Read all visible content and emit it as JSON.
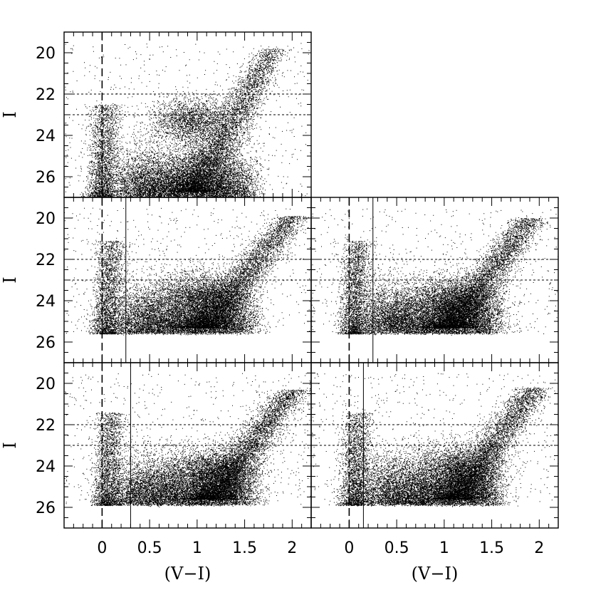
{
  "chart_data": [
    {
      "panel": "top-left",
      "type": "scatter",
      "xlabel": "",
      "ylabel": "I",
      "xlim": [
        -0.4,
        2.2
      ],
      "ylim": [
        27.0,
        19.0
      ],
      "y_tick_labels": [
        "20",
        "22",
        "24",
        "26"
      ],
      "x_tick_labels": [],
      "reference_lines": {
        "dashed_x": 0.0,
        "dotted_y": [
          22.0,
          23.0
        ],
        "solid_x": null
      },
      "features": {
        "rgb_tip_color": 1.8,
        "rgb_tip_mag": 19.8,
        "rgb_base_color": 0.9,
        "red_clump": [
          0.95,
          23.3
        ],
        "blue_plume_color": 0.0,
        "faint_limit": 27.0
      }
    },
    {
      "panel": "middle-left",
      "type": "scatter",
      "xlabel": "",
      "ylabel": "I",
      "xlim": [
        -0.4,
        2.2
      ],
      "ylim": [
        27.0,
        19.0
      ],
      "y_tick_labels": [
        "20",
        "22",
        "24",
        "26"
      ],
      "x_tick_labels": [],
      "reference_lines": {
        "dashed_x": 0.0,
        "dotted_y": [
          22.0,
          23.0
        ],
        "solid_x": 0.25
      },
      "features": {
        "rgb_tip_color": 2.0,
        "rgb_tip_mag": 19.9,
        "rgb_base_color": 1.0,
        "red_clump": [
          1.05,
          23.8
        ],
        "blue_plume_color": 0.05,
        "faint_limit": 25.6
      }
    },
    {
      "panel": "middle-right",
      "type": "scatter",
      "xlabel": "",
      "ylabel": "",
      "xlim": [
        -0.4,
        2.2
      ],
      "ylim": [
        27.0,
        19.0
      ],
      "y_tick_labels": [],
      "x_tick_labels": [],
      "reference_lines": {
        "dashed_x": 0.0,
        "dotted_y": [
          22.0,
          23.0
        ],
        "solid_x": 0.25
      },
      "features": {
        "rgb_tip_color": 1.9,
        "rgb_tip_mag": 20.0,
        "rgb_base_color": 1.0,
        "red_clump": [
          1.1,
          24.0
        ],
        "blue_plume_color": 0.05,
        "faint_limit": 25.6
      }
    },
    {
      "panel": "bottom-left",
      "type": "scatter",
      "xlabel": "(V−I)",
      "ylabel": "I",
      "xlim": [
        -0.4,
        2.2
      ],
      "ylim": [
        27.0,
        19.0
      ],
      "y_tick_labels": [
        "20",
        "22",
        "24",
        "26"
      ],
      "x_tick_labels": [
        "0",
        "0.5",
        "1",
        "1.5",
        "2"
      ],
      "reference_lines": {
        "dashed_x": 0.0,
        "dotted_y": [
          22.0,
          23.0
        ],
        "solid_x": 0.3
      },
      "features": {
        "rgb_tip_color": 2.0,
        "rgb_tip_mag": 20.3,
        "rgb_base_color": 1.1,
        "red_clump": [
          1.2,
          24.2
        ],
        "blue_plume_color": 0.05,
        "faint_limit": 25.9
      }
    },
    {
      "panel": "bottom-right",
      "type": "scatter",
      "xlabel": "(V−I)",
      "ylabel": "",
      "xlim": [
        -0.4,
        2.2
      ],
      "ylim": [
        27.0,
        19.0
      ],
      "y_tick_labels": [],
      "x_tick_labels": [
        "0",
        "0.5",
        "1",
        "1.5",
        "2"
      ],
      "reference_lines": {
        "dashed_x": 0.0,
        "dotted_y": [
          22.0,
          23.0
        ],
        "solid_x": 0.15
      },
      "features": {
        "rgb_tip_color": 1.95,
        "rgb_tip_mag": 20.2,
        "rgb_base_color": 1.05,
        "red_clump": [
          1.15,
          24.1
        ],
        "blue_plume_color": 0.05,
        "faint_limit": 25.9
      }
    }
  ]
}
